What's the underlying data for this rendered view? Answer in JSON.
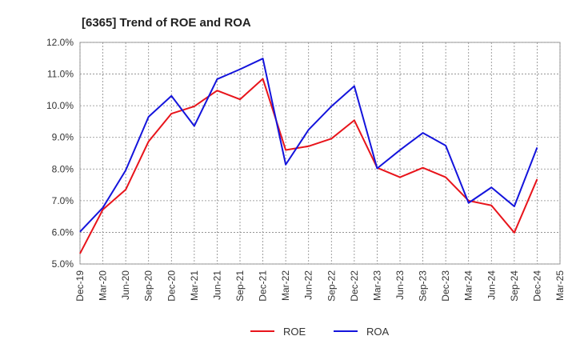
{
  "chart_data": {
    "type": "line",
    "title": "[6365]  Trend of ROE and ROA",
    "xlabel": "",
    "ylabel": "",
    "ylim": [
      5.0,
      12.0
    ],
    "yticks": [
      "5.0%",
      "6.0%",
      "7.0%",
      "8.0%",
      "9.0%",
      "10.0%",
      "11.0%",
      "12.0%"
    ],
    "categories": [
      "Dec-19",
      "Mar-20",
      "Jun-20",
      "Sep-20",
      "Dec-20",
      "Mar-21",
      "Jun-21",
      "Sep-21",
      "Dec-21",
      "Mar-22",
      "Jun-22",
      "Sep-22",
      "Dec-22",
      "Mar-23",
      "Jun-23",
      "Sep-23",
      "Dec-23",
      "Mar-24",
      "Jun-24",
      "Sep-24",
      "Dec-24",
      "Mar-25"
    ],
    "grid": true,
    "legend_position": "bottom-center",
    "series": [
      {
        "name": "ROE",
        "color": "#e8141b",
        "values": [
          5.33,
          6.72,
          7.35,
          8.87,
          9.75,
          9.98,
          10.48,
          10.2,
          10.85,
          8.6,
          8.72,
          8.96,
          9.54,
          8.04,
          7.74,
          8.04,
          7.74,
          7.0,
          6.85,
          5.99,
          7.68,
          null
        ]
      },
      {
        "name": "ROA",
        "color": "#1414dc",
        "values": [
          6.02,
          6.78,
          7.96,
          9.65,
          10.31,
          9.36,
          10.84,
          11.15,
          11.49,
          8.14,
          9.24,
          9.98,
          10.62,
          8.02,
          8.6,
          9.14,
          8.74,
          6.93,
          7.42,
          6.82,
          8.68,
          null
        ]
      }
    ]
  }
}
